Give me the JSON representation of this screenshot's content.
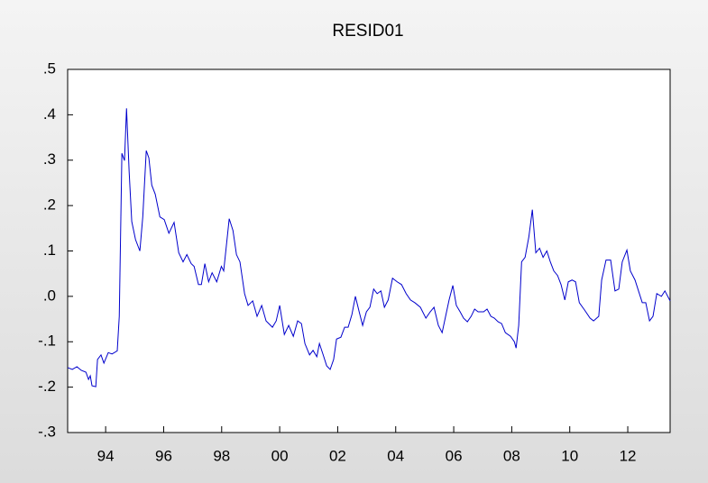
{
  "chart_data": {
    "type": "line",
    "title": "RESID01",
    "x": [
      1992.69,
      1992.85,
      1993.01,
      1993.16,
      1993.32,
      1993.41,
      1993.47,
      1993.53,
      1993.66,
      1993.72,
      1993.84,
      1993.94,
      1994.09,
      1994.22,
      1994.4,
      1994.47,
      1994.56,
      1994.65,
      1994.72,
      1994.81,
      1994.9,
      1995.03,
      1995.18,
      1995.28,
      1995.4,
      1995.49,
      1995.59,
      1995.71,
      1995.87,
      1996.02,
      1996.18,
      1996.36,
      1996.52,
      1996.67,
      1996.8,
      1996.95,
      1997.05,
      1997.2,
      1997.3,
      1997.42,
      1997.55,
      1997.67,
      1997.83,
      1997.99,
      1998.07,
      1998.26,
      1998.39,
      1998.51,
      1998.63,
      1998.79,
      1998.91,
      1999.07,
      1999.22,
      1999.38,
      1999.53,
      1999.75,
      1999.88,
      2000.0,
      2000.16,
      2000.31,
      2000.47,
      2000.62,
      2000.75,
      2000.87,
      2001.03,
      2001.15,
      2001.28,
      2001.37,
      2001.49,
      2001.62,
      2001.74,
      2001.86,
      2001.96,
      2002.11,
      2002.24,
      2002.36,
      2002.49,
      2002.61,
      2002.74,
      2002.86,
      2002.99,
      2003.11,
      2003.24,
      2003.36,
      2003.49,
      2003.61,
      2003.74,
      2003.89,
      2004.05,
      2004.2,
      2004.36,
      2004.51,
      2004.66,
      2004.85,
      2005.04,
      2005.19,
      2005.32,
      2005.47,
      2005.6,
      2005.72,
      2005.84,
      2005.97,
      2006.09,
      2006.22,
      2006.34,
      2006.47,
      2006.6,
      2006.72,
      2006.84,
      2007.03,
      2007.15,
      2007.28,
      2007.4,
      2007.53,
      2007.65,
      2007.78,
      2007.96,
      2008.09,
      2008.15,
      2008.24,
      2008.34,
      2008.46,
      2008.59,
      2008.71,
      2008.83,
      2008.96,
      2009.08,
      2009.21,
      2009.33,
      2009.45,
      2009.58,
      2009.7,
      2009.83,
      2009.95,
      2010.08,
      2010.2,
      2010.33,
      2010.51,
      2010.7,
      2010.82,
      2011.0,
      2011.1,
      2011.25,
      2011.41,
      2011.56,
      2011.69,
      2011.81,
      2011.97,
      2012.09,
      2012.25,
      2012.37,
      2012.5,
      2012.62,
      2012.75,
      2012.87,
      2013.0,
      2013.16,
      2013.28,
      2013.46
    ],
    "values": [
      -0.157,
      -0.161,
      -0.155,
      -0.163,
      -0.167,
      -0.183,
      -0.175,
      -0.197,
      -0.199,
      -0.139,
      -0.129,
      -0.147,
      -0.124,
      -0.127,
      -0.12,
      -0.044,
      0.315,
      0.299,
      0.414,
      0.275,
      0.165,
      0.125,
      0.1,
      0.175,
      0.321,
      0.305,
      0.245,
      0.225,
      0.175,
      0.169,
      0.139,
      0.163,
      0.096,
      0.076,
      0.092,
      0.072,
      0.066,
      0.026,
      0.026,
      0.072,
      0.032,
      0.052,
      0.032,
      0.066,
      0.056,
      0.171,
      0.145,
      0.092,
      0.076,
      0.006,
      -0.02,
      -0.01,
      -0.044,
      -0.02,
      -0.054,
      -0.068,
      -0.054,
      -0.02,
      -0.084,
      -0.064,
      -0.088,
      -0.054,
      -0.06,
      -0.104,
      -0.129,
      -0.119,
      -0.133,
      -0.104,
      -0.127,
      -0.153,
      -0.161,
      -0.139,
      -0.094,
      -0.09,
      -0.068,
      -0.068,
      -0.04,
      0.0,
      -0.034,
      -0.064,
      -0.034,
      -0.024,
      0.016,
      0.006,
      0.012,
      -0.024,
      -0.008,
      0.04,
      0.032,
      0.026,
      0.006,
      -0.008,
      -0.014,
      -0.024,
      -0.048,
      -0.034,
      -0.024,
      -0.064,
      -0.08,
      -0.044,
      -0.008,
      0.024,
      -0.02,
      -0.034,
      -0.048,
      -0.056,
      -0.044,
      -0.028,
      -0.034,
      -0.034,
      -0.028,
      -0.044,
      -0.048,
      -0.056,
      -0.06,
      -0.08,
      -0.088,
      -0.1,
      -0.114,
      -0.064,
      0.076,
      0.086,
      0.131,
      0.191,
      0.096,
      0.106,
      0.086,
      0.1,
      0.076,
      0.056,
      0.046,
      0.026,
      -0.008,
      0.032,
      0.036,
      0.032,
      -0.014,
      -0.03,
      -0.048,
      -0.054,
      -0.044,
      0.036,
      0.08,
      0.08,
      0.012,
      0.016,
      0.076,
      0.102,
      0.056,
      0.036,
      0.012,
      -0.014,
      -0.014,
      -0.054,
      -0.044,
      0.006,
      0.0,
      0.012,
      -0.01
    ],
    "color": "#0000cc",
    "xlim": [
      1992.69,
      2013.46
    ],
    "xticks": [
      {
        "value": 1994,
        "label": "94"
      },
      {
        "value": 1996,
        "label": "96"
      },
      {
        "value": 1998,
        "label": "98"
      },
      {
        "value": 2000,
        "label": "00"
      },
      {
        "value": 2002,
        "label": "02"
      },
      {
        "value": 2004,
        "label": "04"
      },
      {
        "value": 2006,
        "label": "06"
      },
      {
        "value": 2008,
        "label": "08"
      },
      {
        "value": 2010,
        "label": "10"
      },
      {
        "value": 2012,
        "label": "12"
      }
    ],
    "ylim": [
      -0.3,
      0.5
    ],
    "yticks": [
      {
        "value": -0.3,
        "label": "-.3"
      },
      {
        "value": -0.2,
        "label": "-.2"
      },
      {
        "value": -0.1,
        "label": "-.1"
      },
      {
        "value": 0.0,
        "label": ".0"
      },
      {
        "value": 0.1,
        "label": ".1"
      },
      {
        "value": 0.2,
        "label": ".2"
      },
      {
        "value": 0.3,
        "label": ".3"
      },
      {
        "value": 0.4,
        "label": ".4"
      },
      {
        "value": 0.5,
        "label": ".5"
      }
    ]
  }
}
